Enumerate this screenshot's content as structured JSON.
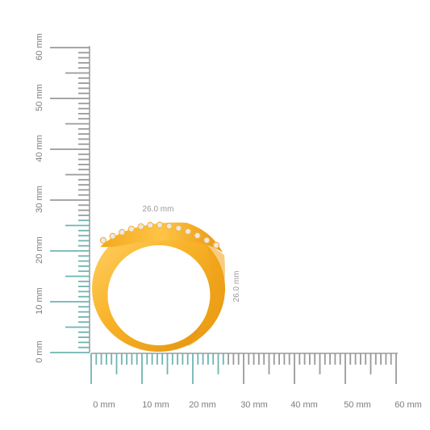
{
  "scale": {
    "unit": "mm",
    "x_labels": [
      "0 mm",
      "10 mm",
      "20 mm",
      "30 mm",
      "40 mm",
      "50 mm",
      "60 mm"
    ],
    "y_labels": [
      "0 mm",
      "10 mm",
      "20 mm",
      "30 mm",
      "40 mm",
      "50 mm",
      "60 mm"
    ],
    "range_mm": [
      0,
      60
    ],
    "highlight_mm": [
      0,
      26
    ],
    "colors": {
      "tick_grey": "#9a9a9a",
      "tick_teal": "#6fb4b0"
    }
  },
  "ring": {
    "width_label": "26.0 mm",
    "height_label": "26.0 mm",
    "width_mm": 26.0,
    "height_mm": 26.0,
    "stone_count": 13,
    "colors": {
      "gold_light": "#ffc84a",
      "gold_mid": "#f7ad1f",
      "gold_dark": "#d98a0a",
      "stone": "#e9e9e9",
      "prong": "#f2b544"
    }
  }
}
